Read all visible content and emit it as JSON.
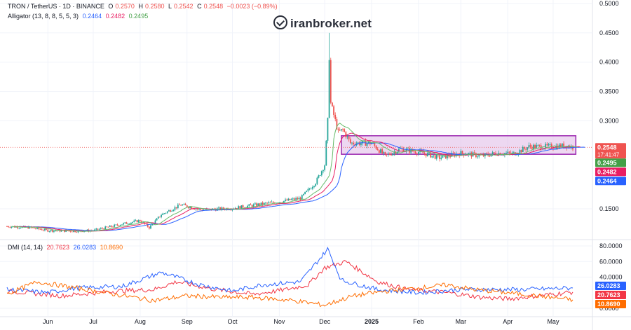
{
  "header": {
    "symbol": "TRON / TetherUS · 1D · BINANCE",
    "ohlc": [
      {
        "label": "O",
        "value": "0.2570"
      },
      {
        "label": "H",
        "value": "0.2580"
      },
      {
        "label": "L",
        "value": "0.2542"
      },
      {
        "label": "C",
        "value": "0.2548"
      }
    ],
    "change": "−0.0023 (−0.89%)",
    "alligator_label": "Alligator (13, 8, 8, 5, 5, 3)",
    "alligator_values": [
      "0.2464",
      "0.2482",
      "0.2495"
    ],
    "dmi_label": "DMI (14, 14)",
    "dmi_values": [
      "20.7623",
      "26.0283",
      "10.8690"
    ]
  },
  "watermark": "iranbroker.net",
  "colors": {
    "up": "#26a69a",
    "down": "#ef5350",
    "jaw": "#2962ff",
    "teeth": "#e91e63",
    "lips": "#66bb6a",
    "adx": "#f23645",
    "plus_di": "#2962ff",
    "minus_di": "#ff6d00",
    "box_fill": "#e1bee7",
    "box_stroke": "#9c27b0",
    "text": "#131722"
  },
  "chart_data": [
    {
      "type": "candlestick",
      "title": "TRON / TetherUS · 1D · BINANCE",
      "x_ticks": [
        "Jun",
        "Jul",
        "Aug",
        "Sep",
        "Oct",
        "Nov",
        "Dec",
        "2025",
        "Feb",
        "Mar",
        "Apr",
        "May"
      ],
      "y_ticks": [
        "0.5000",
        "0.4500",
        "0.4000",
        "0.3500",
        "0.3000",
        "0.1500"
      ],
      "ylim": [
        0.09,
        0.5
      ],
      "y_scale": "linear",
      "grid": true,
      "price_labels": [
        {
          "value": 0.2548,
          "text": "0.2548",
          "color": "#ef5350"
        },
        {
          "value": 0.2495,
          "text": "0.2495",
          "color": "#43a047"
        },
        {
          "value": 0.2482,
          "text": "0.2482",
          "color": "#e91e63"
        },
        {
          "value": 0.2464,
          "text": "0.2464",
          "color": "#2962ff"
        }
      ],
      "countdown": "17:41:47",
      "current_price": 0.2548,
      "range_box": {
        "x_start": "2024-12-12",
        "x_end": "2025-05-16",
        "top": 0.2745,
        "bottom": 0.243
      },
      "close_series_anchors": [
        [
          "2024-05-05",
          0.12
        ],
        [
          "2024-05-20",
          0.118
        ],
        [
          "2024-06-01",
          0.113
        ],
        [
          "2024-06-20",
          0.112
        ],
        [
          "2024-07-01",
          0.113
        ],
        [
          "2024-07-20",
          0.124
        ],
        [
          "2024-08-01",
          0.13
        ],
        [
          "2024-08-07",
          0.118
        ],
        [
          "2024-08-15",
          0.14
        ],
        [
          "2024-08-28",
          0.157
        ],
        [
          "2024-09-10",
          0.148
        ],
        [
          "2024-10-01",
          0.151
        ],
        [
          "2024-10-20",
          0.158
        ],
        [
          "2024-11-01",
          0.162
        ],
        [
          "2024-11-15",
          0.168
        ],
        [
          "2024-11-25",
          0.195
        ],
        [
          "2024-12-01",
          0.225
        ],
        [
          "2024-12-03",
          0.3
        ],
        [
          "2024-12-04",
          0.41
        ],
        [
          "2024-12-05",
          0.33
        ],
        [
          "2024-12-10",
          0.28
        ],
        [
          "2024-12-13",
          0.285
        ],
        [
          "2024-12-18",
          0.262
        ],
        [
          "2024-12-25",
          0.262
        ],
        [
          "2025-01-01",
          0.262
        ],
        [
          "2025-01-10",
          0.24
        ],
        [
          "2025-01-20",
          0.252
        ],
        [
          "2025-02-01",
          0.247
        ],
        [
          "2025-02-15",
          0.237
        ],
        [
          "2025-03-01",
          0.245
        ],
        [
          "2025-03-15",
          0.24
        ],
        [
          "2025-03-25",
          0.245
        ],
        [
          "2025-04-05",
          0.244
        ],
        [
          "2025-04-15",
          0.256
        ],
        [
          "2025-05-01",
          0.256
        ],
        [
          "2025-05-10",
          0.258
        ],
        [
          "2025-05-14",
          0.2548
        ]
      ],
      "high_extremes": [
        [
          "2024-12-04",
          0.45
        ]
      ],
      "indicator": {
        "name": "Alligator (13, 8, 8, 5, 5, 3)",
        "jaw": 0.2464,
        "teeth": 0.2482,
        "lips": 0.2495
      }
    },
    {
      "type": "line",
      "title": "DMI (14, 14)",
      "y_ticks": [
        "80.0000",
        "60.0000",
        "40.0000",
        "0.0000"
      ],
      "ylim": [
        0,
        85
      ],
      "series": [
        {
          "name": "ADX",
          "last": 20.7623,
          "color": "#f23645",
          "anchors": [
            [
              "2024-05-05",
              22
            ],
            [
              "2024-06-10",
              16
            ],
            [
              "2024-07-15",
              22
            ],
            [
              "2024-08-10",
              24
            ],
            [
              "2024-08-25",
              34
            ],
            [
              "2024-09-20",
              24
            ],
            [
              "2024-10-15",
              18
            ],
            [
              "2024-11-05",
              24
            ],
            [
              "2024-11-20",
              30
            ],
            [
              "2024-12-01",
              52
            ],
            [
              "2024-12-15",
              60
            ],
            [
              "2025-01-05",
              34
            ],
            [
              "2025-01-25",
              24
            ],
            [
              "2025-02-20",
              20
            ],
            [
              "2025-03-15",
              14
            ],
            [
              "2025-04-01",
              12
            ],
            [
              "2025-05-14",
              20.7623
            ]
          ]
        },
        {
          "name": "+DI",
          "last": 26.0283,
          "color": "#2962ff",
          "anchors": [
            [
              "2024-05-05",
              24
            ],
            [
              "2024-06-01",
              20
            ],
            [
              "2024-06-20",
              26
            ],
            [
              "2024-07-20",
              28
            ],
            [
              "2024-08-15",
              46
            ],
            [
              "2024-09-10",
              30
            ],
            [
              "2024-10-01",
              22
            ],
            [
              "2024-10-20",
              30
            ],
            [
              "2024-11-15",
              34
            ],
            [
              "2024-12-03",
              76
            ],
            [
              "2024-12-12",
              36
            ],
            [
              "2025-01-05",
              24
            ],
            [
              "2025-02-01",
              20
            ],
            [
              "2025-03-01",
              24
            ],
            [
              "2025-04-10",
              24
            ],
            [
              "2025-05-14",
              26.0283
            ]
          ]
        },
        {
          "name": "−DI",
          "last": 10.869,
          "color": "#ff6d00",
          "anchors": [
            [
              "2024-05-05",
              18
            ],
            [
              "2024-05-25",
              34
            ],
            [
              "2024-06-20",
              26
            ],
            [
              "2024-07-15",
              18
            ],
            [
              "2024-08-10",
              10
            ],
            [
              "2024-09-01",
              16
            ],
            [
              "2024-09-25",
              14
            ],
            [
              "2024-10-15",
              14
            ],
            [
              "2024-11-10",
              10
            ],
            [
              "2024-12-01",
              4
            ],
            [
              "2024-12-20",
              16
            ],
            [
              "2025-01-10",
              22
            ],
            [
              "2025-02-01",
              26
            ],
            [
              "2025-02-20",
              30
            ],
            [
              "2025-03-10",
              24
            ],
            [
              "2025-04-01",
              20
            ],
            [
              "2025-05-14",
              10.869
            ]
          ]
        }
      ],
      "price_labels": [
        {
          "value": 26.0283,
          "text": "26.0283",
          "color": "#2962ff"
        },
        {
          "value": 20.7623,
          "text": "20.7623",
          "color": "#f23645"
        },
        {
          "value": 10.869,
          "text": "10.8690",
          "color": "#ff6d00"
        }
      ]
    }
  ]
}
